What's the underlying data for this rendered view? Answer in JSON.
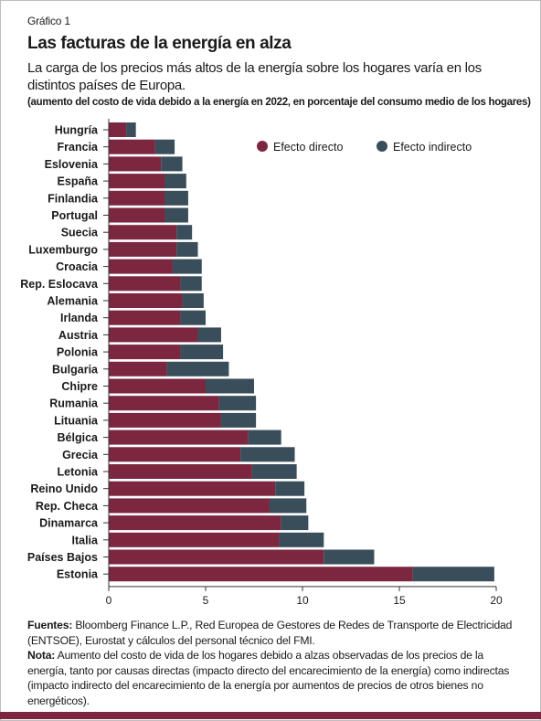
{
  "header": {
    "label": "Gráfico 1",
    "title": "Las facturas de la energía en alza",
    "subtitle": "La carga de los precios más altos de la energía sobre los hogares varía en los distintos países de Europa.",
    "units": "(aumento del costo de vida debido a la energía en 2022, en porcentaje del consumo medio de los hogares)"
  },
  "colors": {
    "direct": "#7b2740",
    "indirect": "#3a4d5a",
    "bottom_bar": "#7b2740"
  },
  "chart_data": {
    "type": "bar",
    "orientation": "horizontal",
    "stacked": true,
    "categories": [
      "Hungría",
      "Francia",
      "Eslovenia",
      "España",
      "Finlandia",
      "Portugal",
      "Suecia",
      "Luxemburgo",
      "Croacia",
      "Rep. Eslocava",
      "Alemania",
      "Irlanda",
      "Austria",
      "Polonia",
      "Bulgaria",
      "Chipre",
      "Rumania",
      "Lituania",
      "Bélgica",
      "Grecia",
      "Letonia",
      "Reino Unido",
      "Rep. Checa",
      "Dinamarca",
      "Italia",
      "Países Bajos",
      "Estonia"
    ],
    "series": [
      {
        "name": "Efecto directo",
        "values": [
          0.9,
          2.4,
          2.7,
          2.9,
          2.9,
          2.9,
          3.5,
          3.5,
          3.3,
          3.7,
          3.8,
          3.7,
          4.6,
          3.7,
          3.0,
          5.0,
          5.7,
          5.8,
          7.2,
          6.8,
          7.4,
          8.6,
          8.3,
          8.9,
          8.8,
          11.1,
          15.7
        ]
      },
      {
        "name": "Efecto indirecto",
        "values": [
          0.5,
          1.0,
          1.1,
          1.1,
          1.2,
          1.2,
          0.8,
          1.1,
          1.5,
          1.1,
          1.1,
          1.3,
          1.2,
          2.2,
          3.2,
          2.5,
          1.9,
          1.8,
          1.7,
          2.8,
          2.3,
          1.5,
          1.9,
          1.4,
          2.3,
          2.6,
          4.2
        ]
      }
    ],
    "x_ticks": [
      "0",
      "5",
      "10",
      "15",
      "20"
    ],
    "xlim": [
      0,
      20
    ],
    "grid": false,
    "legend": "top-right"
  },
  "notes": {
    "sources_label": "Fuentes:",
    "sources_text": " Bloomberg Finance L.P., Red Europea de Gestores de Redes de Transporte de Electricidad (ENTSOE), Eurostat y cálculos del personal técnico del FMI.",
    "note_label": "Nota:",
    "note_text": " Aumento del costo de vida de los hogares debido a alzas observadas de los precios de la energía, tanto por causas directas (impacto directo del encarecimiento de la energía) como indirectas (impacto indirecto del encarecimiento de la energía por aumentos de precios de otros bienes no energéticos)."
  }
}
